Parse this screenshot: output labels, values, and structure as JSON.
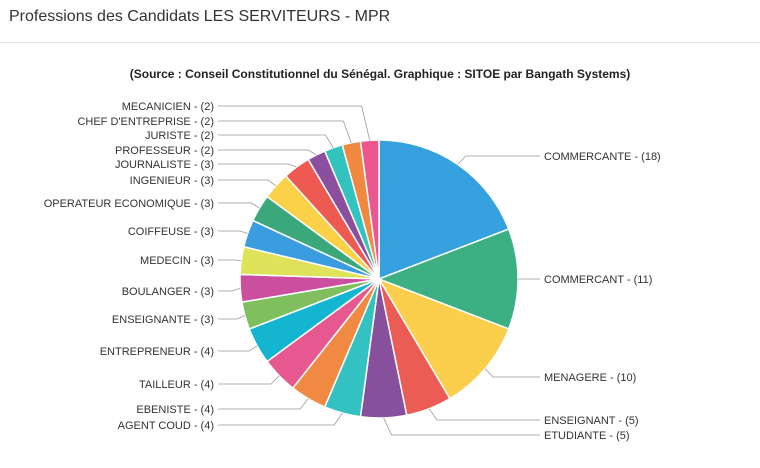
{
  "page": {
    "title": "Professions des Candidats LES SERVITEURS - MPR"
  },
  "chart_data": {
    "type": "pie",
    "title": "",
    "subtitle": "(Source : Conseil Constitutionnel du Sénégal. Graphique : SITOE par Bangath Systems)",
    "legend": "none",
    "slices": [
      {
        "label": "COMMERCANTE - (18)",
        "value": 18,
        "color": "#35a1df"
      },
      {
        "label": "COMMERCANT - (11)",
        "value": 11,
        "color": "#3cb082"
      },
      {
        "label": "MENAGERE - (10)",
        "value": 10,
        "color": "#fbcf4b"
      },
      {
        "label": "ENSEIGNANT - (5)",
        "value": 5,
        "color": "#eb5c55"
      },
      {
        "label": "ETUDIANTE - (5)",
        "value": 5,
        "color": "#87509c"
      },
      {
        "label": "AGENT COUD - (4)",
        "value": 4,
        "color": "#33c1c1"
      },
      {
        "label": "EBENISTE - (4)",
        "value": 4,
        "color": "#f08a42"
      },
      {
        "label": "TAILLEUR - (4)",
        "value": 4,
        "color": "#e85890"
      },
      {
        "label": "ENTREPRENEUR - (4)",
        "value": 4,
        "color": "#14b5d0"
      },
      {
        "label": "ENSEIGNANTE - (3)",
        "value": 3,
        "color": "#7fbf5e"
      },
      {
        "label": "BOULANGER - (3)",
        "value": 3,
        "color": "#cc4f9f"
      },
      {
        "label": "MEDECIN - (3)",
        "value": 3,
        "color": "#dee359"
      },
      {
        "label": "COIFFEUSE - (3)",
        "value": 3,
        "color": "#3a9de0"
      },
      {
        "label": "OPERATEUR ECONOMIQUE - (3)",
        "value": 3,
        "color": "#3ba87c"
      },
      {
        "label": "INGENIEUR - (3)",
        "value": 3,
        "color": "#fad147"
      },
      {
        "label": "JOURNALISTE - (3)",
        "value": 3,
        "color": "#ee5a52"
      },
      {
        "label": "PROFESSEUR - (2)",
        "value": 2,
        "color": "#8a4f9f"
      },
      {
        "label": "JURISTE - (2)",
        "value": 2,
        "color": "#33c3be"
      },
      {
        "label": "CHEF D'ENTREPRISE - (2)",
        "value": 2,
        "color": "#f1883f"
      },
      {
        "label": "MECANICIEN - (2)",
        "value": 2,
        "color": "#ec5790"
      }
    ]
  }
}
